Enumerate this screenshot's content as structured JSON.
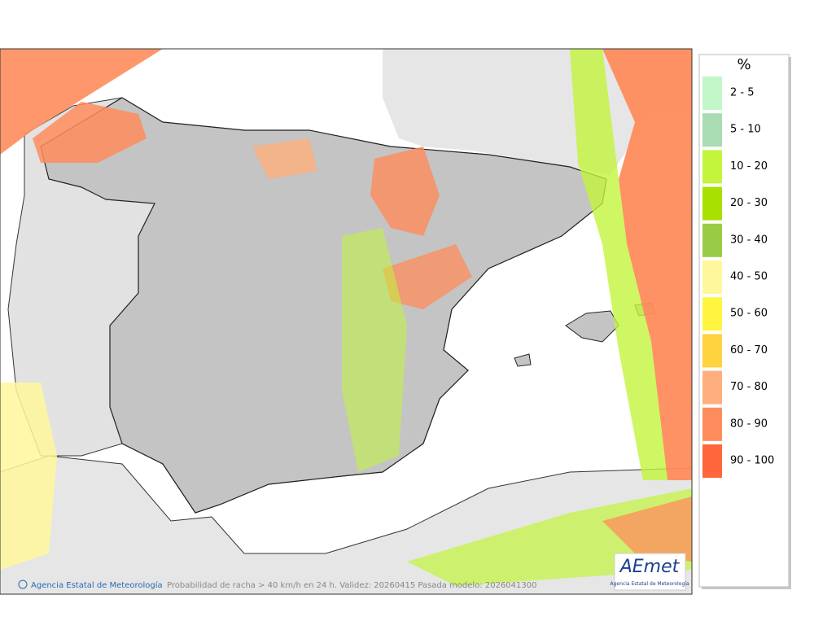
{
  "legend": {
    "title": "%",
    "items": [
      {
        "label": "2 - 5",
        "color": "#c2f7c9"
      },
      {
        "label": "5 - 10",
        "color": "#a9dcb2"
      },
      {
        "label": "10 - 20",
        "color": "#c2f53c"
      },
      {
        "label": "20 - 30",
        "color": "#a8e100"
      },
      {
        "label": "30 - 40",
        "color": "#9acb46"
      },
      {
        "label": "40 - 50",
        "color": "#fff79c"
      },
      {
        "label": "50 - 60",
        "color": "#fff53f"
      },
      {
        "label": "60 - 70",
        "color": "#ffd23f"
      },
      {
        "label": "70 - 80",
        "color": "#ffaf7d"
      },
      {
        "label": "80 - 90",
        "color": "#ff8c5c"
      },
      {
        "label": "90 - 100",
        "color": "#ff663b"
      }
    ]
  },
  "footer": {
    "credit": "Agencia Estatal de Meteorología",
    "caption": "Probabilidad de racha > 40 km/h en 24 h. Validez: 20260415 Pasada modelo: 2026041300"
  },
  "logo": {
    "name": "AEmet",
    "subtitle": "Agencia Estatal de Meteorología"
  }
}
